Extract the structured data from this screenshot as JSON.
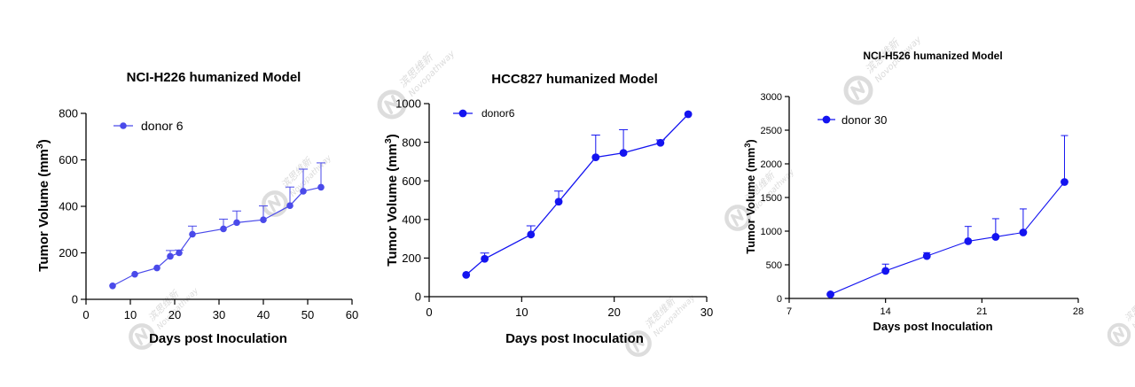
{
  "watermark": {
    "cn": "滨思维新",
    "en": "Novopathway",
    "color": "#d2d2d2"
  },
  "chart_data": [
    {
      "type": "line",
      "title": "NCI-H226 humanized Model",
      "xlabel": "Days post Inoculation",
      "ylabel": "Tumor Volume (mm³)",
      "xlim": [
        0,
        60
      ],
      "ylim": [
        0,
        800
      ],
      "xticks": [
        0,
        10,
        20,
        30,
        40,
        50,
        60
      ],
      "yticks": [
        0,
        200,
        400,
        600,
        800
      ],
      "grid": false,
      "legend_position": "top-left",
      "color": "#4a4aea",
      "series": [
        {
          "name": "donor 6",
          "x": [
            6,
            11,
            16,
            19,
            21,
            24,
            31,
            34,
            40,
            46,
            49,
            53
          ],
          "y": [
            58,
            108,
            135,
            185,
            200,
            280,
            303,
            330,
            342,
            403,
            465,
            482
          ],
          "error": [
            0,
            0,
            0,
            25,
            12,
            35,
            42,
            50,
            60,
            80,
            95,
            105
          ]
        }
      ]
    },
    {
      "type": "line",
      "title": "HCC827 humanized Model",
      "xlabel": "Days post Inoculation",
      "ylabel": "Tumor Volume (mm³)",
      "xlim": [
        0,
        30
      ],
      "ylim": [
        0,
        1000
      ],
      "xticks": [
        0,
        10,
        20,
        30
      ],
      "yticks": [
        0,
        200,
        400,
        600,
        800,
        1000
      ],
      "grid": false,
      "legend_position": "top-left",
      "color": "#1414f0",
      "series": [
        {
          "name": "donor6",
          "x": [
            4,
            6,
            11,
            14,
            18,
            21,
            25,
            28
          ],
          "y": [
            113,
            196,
            322,
            492,
            722,
            745,
            797,
            945
          ],
          "error": [
            0,
            30,
            45,
            55,
            115,
            120,
            15,
            0
          ]
        }
      ]
    },
    {
      "type": "line",
      "title": "NCI-H526 humanized Model",
      "xlabel": "Days post Inoculation",
      "ylabel": "Tumor Volume (mm³)",
      "xlim": [
        7,
        28
      ],
      "ylim": [
        0,
        3000
      ],
      "xticks": [
        7,
        14,
        21,
        28
      ],
      "yticks": [
        0,
        500,
        1000,
        1500,
        2000,
        2500,
        3000
      ],
      "grid": false,
      "legend_position": "top-left",
      "color": "#1414f0",
      "series": [
        {
          "name": "donor 30",
          "x": [
            10,
            14,
            17,
            20,
            22,
            24,
            27
          ],
          "y": [
            60,
            410,
            630,
            850,
            915,
            980,
            1730
          ],
          "error": [
            0,
            100,
            50,
            220,
            270,
            350,
            690
          ]
        }
      ]
    }
  ]
}
